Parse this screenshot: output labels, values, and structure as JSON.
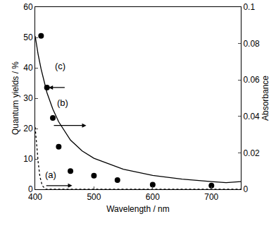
{
  "chart_data": {
    "type": "line",
    "x_label": "Wavelength / nm",
    "y_label": "Quantum yields / %",
    "y2_label": "Absorbance",
    "xlim": [
      400,
      750
    ],
    "xticks": [
      400,
      500,
      600,
      700
    ],
    "ylim": [
      0,
      60
    ],
    "yticks": [
      0,
      10,
      20,
      30,
      40,
      50,
      60
    ],
    "y2lim": [
      0,
      0.1
    ],
    "y2ticks": [
      0,
      0.02,
      0.04,
      0.06,
      0.08,
      0.1
    ],
    "grid": false,
    "series": [
      {
        "name": "(a)",
        "type": "line",
        "axis": "y2",
        "line_style": "dotted",
        "color": "#000000",
        "x": [
          400,
          402,
          405,
          408,
          412,
          418,
          500,
          750
        ],
        "values": [
          0.034,
          0.026,
          0.015,
          0.007,
          0.002,
          0,
          0,
          0
        ]
      },
      {
        "name": "(b)",
        "type": "line",
        "axis": "y2",
        "line_style": "solid",
        "color": "#000000",
        "x": [
          400,
          405,
          410,
          420,
          430,
          440,
          460,
          480,
          500,
          550,
          600,
          650,
          700,
          725,
          750
        ],
        "values": [
          0.084,
          0.074,
          0.066,
          0.053,
          0.044,
          0.037,
          0.027,
          0.021,
          0.017,
          0.011,
          0.0076,
          0.0056,
          0.0042,
          0.0036,
          0.0042
        ]
      },
      {
        "name": "(c)",
        "type": "scatter",
        "axis": "y",
        "marker": "circle",
        "color": "#000000",
        "x": [
          410,
          420,
          430,
          440,
          460,
          500,
          540,
          600,
          700
        ],
        "values": [
          50.5,
          33.5,
          23.5,
          14,
          6,
          4.5,
          3,
          1.5,
          1.2
        ]
      }
    ]
  }
}
